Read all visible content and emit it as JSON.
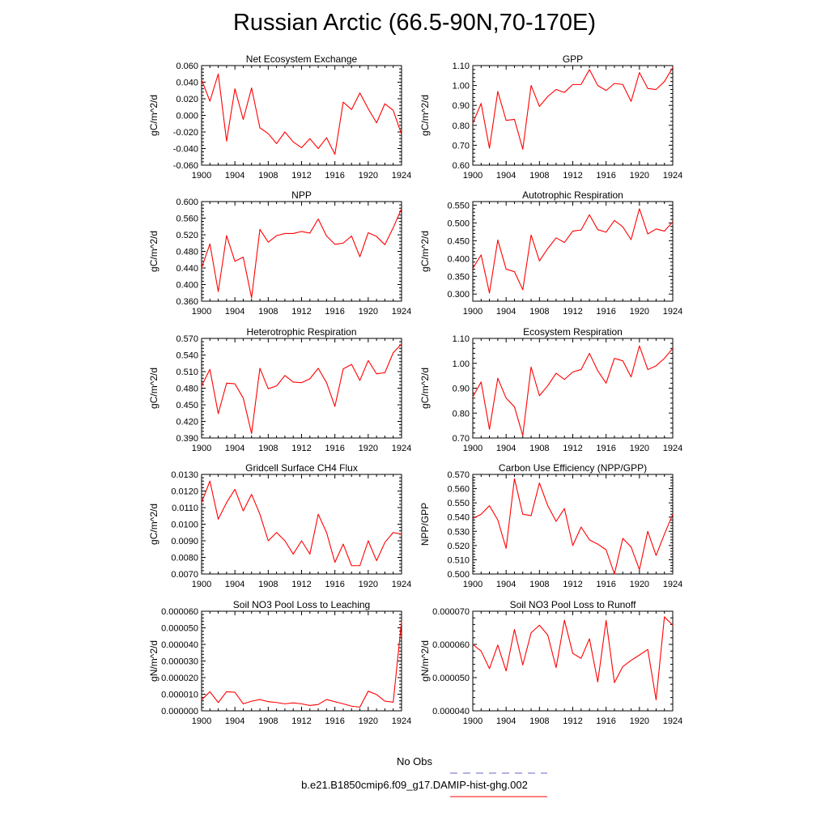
{
  "page": {
    "title": "Russian Arctic (66.5-90N,70-170E)"
  },
  "legend": {
    "obs_label": "No Obs",
    "obs_color": "#6666cc",
    "case_label": "b.e21.B1850cmip6.f09_g17.DAMIP-hist-ghg.002",
    "case_color": "#ff0000"
  },
  "chart_data": [
    {
      "type": "line",
      "title": "Net Ecosystem Exchange",
      "ylabel": "gC/m^2/d",
      "xlim": [
        1900,
        1924
      ],
      "xticks": [
        "1900",
        "1904",
        "1908",
        "1912",
        "1916",
        "1920",
        "1924"
      ],
      "ylim": [
        -0.06,
        0.06
      ],
      "yticks": [
        "0.060",
        "0.040",
        "0.020",
        "0.000",
        "-0.020",
        "-0.040",
        "-0.060"
      ],
      "series": [
        {
          "color": "#ff0000",
          "x": [
            1900,
            1901,
            1902,
            1903,
            1904,
            1905,
            1906,
            1907,
            1908,
            1909,
            1910,
            1911,
            1912,
            1913,
            1914,
            1915,
            1916,
            1917,
            1918,
            1919,
            1920,
            1921,
            1922,
            1923,
            1924
          ],
          "values": [
            0.043,
            0.017,
            0.05,
            -0.031,
            0.032,
            -0.005,
            0.033,
            -0.015,
            -0.022,
            -0.034,
            -0.02,
            -0.032,
            -0.039,
            -0.028,
            -0.04,
            -0.027,
            -0.047,
            0.016,
            0.007,
            0.027,
            0.008,
            -0.009,
            0.014,
            0.006,
            -0.023
          ]
        }
      ]
    },
    {
      "type": "line",
      "title": "GPP",
      "ylabel": "gC/m^2/d",
      "xlim": [
        1900,
        1924
      ],
      "xticks": [
        "1900",
        "1904",
        "1908",
        "1912",
        "1916",
        "1920",
        "1924"
      ],
      "ylim": [
        0.6,
        1.1
      ],
      "yticks": [
        "1.10",
        "1.00",
        "0.90",
        "0.80",
        "0.70",
        "0.60"
      ],
      "series": [
        {
          "color": "#ff0000",
          "x": [
            1900,
            1901,
            1902,
            1903,
            1904,
            1905,
            1906,
            1907,
            1908,
            1909,
            1910,
            1911,
            1912,
            1913,
            1914,
            1915,
            1916,
            1917,
            1918,
            1919,
            1920,
            1921,
            1922,
            1923,
            1924
          ],
          "values": [
            0.81,
            0.91,
            0.685,
            0.97,
            0.825,
            0.83,
            0.68,
            1.0,
            0.895,
            0.945,
            0.98,
            0.965,
            1.005,
            1.005,
            1.08,
            1.0,
            0.975,
            1.01,
            1.005,
            0.92,
            1.065,
            0.985,
            0.98,
            1.02,
            1.09
          ]
        }
      ]
    },
    {
      "type": "line",
      "title": "NPP",
      "ylabel": "gC/m^2/d",
      "xlim": [
        1900,
        1924
      ],
      "xticks": [
        "1900",
        "1904",
        "1908",
        "1912",
        "1916",
        "1920",
        "1924"
      ],
      "ylim": [
        0.36,
        0.6
      ],
      "yticks": [
        "0.600",
        "0.560",
        "0.520",
        "0.480",
        "0.440",
        "0.400",
        "0.360"
      ],
      "series": [
        {
          "color": "#ff0000",
          "x": [
            1900,
            1901,
            1902,
            1903,
            1904,
            1905,
            1906,
            1907,
            1908,
            1909,
            1910,
            1911,
            1912,
            1913,
            1914,
            1915,
            1916,
            1917,
            1918,
            1919,
            1920,
            1921,
            1922,
            1923,
            1924
          ],
          "values": [
            0.44,
            0.498,
            0.383,
            0.518,
            0.456,
            0.466,
            0.368,
            0.533,
            0.502,
            0.518,
            0.523,
            0.523,
            0.528,
            0.524,
            0.558,
            0.517,
            0.497,
            0.5,
            0.517,
            0.467,
            0.525,
            0.516,
            0.496,
            0.537,
            0.583
          ]
        }
      ]
    },
    {
      "type": "line",
      "title": "Autotrophic Respiration",
      "ylabel": "gC/m^2/d",
      "xlim": [
        1900,
        1924
      ],
      "xticks": [
        "1900",
        "1904",
        "1908",
        "1912",
        "1916",
        "1920",
        "1924"
      ],
      "ylim": [
        0.28,
        0.56
      ],
      "yticks": [
        "0.550",
        "0.500",
        "0.450",
        "0.400",
        "0.350",
        "0.300"
      ],
      "series": [
        {
          "color": "#ff0000",
          "x": [
            1900,
            1901,
            1902,
            1903,
            1904,
            1905,
            1906,
            1907,
            1908,
            1909,
            1910,
            1911,
            1912,
            1913,
            1914,
            1915,
            1916,
            1917,
            1918,
            1919,
            1920,
            1921,
            1922,
            1923,
            1924
          ],
          "values": [
            0.372,
            0.41,
            0.303,
            0.452,
            0.37,
            0.363,
            0.312,
            0.466,
            0.393,
            0.428,
            0.458,
            0.445,
            0.477,
            0.48,
            0.523,
            0.481,
            0.474,
            0.507,
            0.489,
            0.453,
            0.54,
            0.469,
            0.483,
            0.477,
            0.503
          ]
        }
      ]
    },
    {
      "type": "line",
      "title": "Heterotrophic Respiration",
      "ylabel": "gC/m^2/d",
      "xlim": [
        1900,
        1924
      ],
      "xticks": [
        "1900",
        "1904",
        "1908",
        "1912",
        "1916",
        "1920",
        "1924"
      ],
      "ylim": [
        0.39,
        0.57
      ],
      "yticks": [
        "0.570",
        "0.540",
        "0.510",
        "0.480",
        "0.450",
        "0.420",
        "0.390"
      ],
      "series": [
        {
          "color": "#ff0000",
          "x": [
            1900,
            1901,
            1902,
            1903,
            1904,
            1905,
            1906,
            1907,
            1908,
            1909,
            1910,
            1911,
            1912,
            1913,
            1914,
            1915,
            1916,
            1917,
            1918,
            1919,
            1920,
            1921,
            1922,
            1923,
            1924
          ],
          "values": [
            0.484,
            0.514,
            0.434,
            0.489,
            0.488,
            0.462,
            0.398,
            0.516,
            0.479,
            0.484,
            0.503,
            0.491,
            0.49,
            0.497,
            0.516,
            0.49,
            0.447,
            0.515,
            0.523,
            0.494,
            0.53,
            0.506,
            0.508,
            0.544,
            0.56
          ]
        }
      ]
    },
    {
      "type": "line",
      "title": "Ecosystem Respiration",
      "ylabel": "gC/m^2/d",
      "xlim": [
        1900,
        1924
      ],
      "xticks": [
        "1900",
        "1904",
        "1908",
        "1912",
        "1916",
        "1920",
        "1924"
      ],
      "ylim": [
        0.7,
        1.1
      ],
      "yticks": [
        "1.10",
        "1.00",
        "0.90",
        "0.80",
        "0.70"
      ],
      "series": [
        {
          "color": "#ff0000",
          "x": [
            1900,
            1901,
            1902,
            1903,
            1904,
            1905,
            1906,
            1907,
            1908,
            1909,
            1910,
            1911,
            1912,
            1913,
            1914,
            1915,
            1916,
            1917,
            1918,
            1919,
            1920,
            1921,
            1922,
            1923,
            1924
          ],
          "values": [
            0.865,
            0.925,
            0.735,
            0.94,
            0.86,
            0.825,
            0.71,
            0.985,
            0.87,
            0.91,
            0.96,
            0.935,
            0.965,
            0.975,
            1.04,
            0.97,
            0.92,
            1.02,
            1.01,
            0.945,
            1.07,
            0.975,
            0.99,
            1.02,
            1.06
          ]
        }
      ]
    },
    {
      "type": "line",
      "title": "Gridcell Surface CH4 Flux",
      "ylabel": "gC/m^2/d",
      "xlim": [
        1900,
        1924
      ],
      "xticks": [
        "1900",
        "1904",
        "1908",
        "1912",
        "1916",
        "1920",
        "1924"
      ],
      "ylim": [
        0.007,
        0.013
      ],
      "yticks": [
        "0.0130",
        "0.0120",
        "0.0110",
        "0.0100",
        "0.0090",
        "0.0080",
        "0.0070"
      ],
      "series": [
        {
          "color": "#ff0000",
          "x": [
            1900,
            1901,
            1902,
            1903,
            1904,
            1905,
            1906,
            1907,
            1908,
            1909,
            1910,
            1911,
            1912,
            1913,
            1914,
            1915,
            1916,
            1917,
            1918,
            1919,
            1920,
            1921,
            1922,
            1923,
            1924
          ],
          "values": [
            0.0113,
            0.0126,
            0.0103,
            0.0113,
            0.0121,
            0.0108,
            0.0118,
            0.0106,
            0.009,
            0.0095,
            0.009,
            0.0082,
            0.009,
            0.0082,
            0.0106,
            0.0095,
            0.0077,
            0.0088,
            0.0075,
            0.0075,
            0.009,
            0.0078,
            0.0089,
            0.0095,
            0.0094
          ]
        }
      ]
    },
    {
      "type": "line",
      "title": "Carbon Use Efficiency (NPP/GPP)",
      "ylabel": "NPP/GPP",
      "xlim": [
        1900,
        1924
      ],
      "xticks": [
        "1900",
        "1904",
        "1908",
        "1912",
        "1916",
        "1920",
        "1924"
      ],
      "ylim": [
        0.5,
        0.57
      ],
      "yticks": [
        "0.570",
        "0.560",
        "0.550",
        "0.540",
        "0.530",
        "0.520",
        "0.510",
        "0.500"
      ],
      "series": [
        {
          "color": "#ff0000",
          "x": [
            1900,
            1901,
            1902,
            1903,
            1904,
            1905,
            1906,
            1907,
            1908,
            1909,
            1910,
            1911,
            1912,
            1913,
            1914,
            1915,
            1916,
            1917,
            1918,
            1919,
            1920,
            1921,
            1922,
            1923,
            1924
          ],
          "values": [
            0.539,
            0.542,
            0.548,
            0.538,
            0.518,
            0.567,
            0.542,
            0.541,
            0.564,
            0.548,
            0.537,
            0.546,
            0.52,
            0.533,
            0.524,
            0.521,
            0.517,
            0.5,
            0.525,
            0.519,
            0.503,
            0.53,
            0.513,
            0.528,
            0.542
          ]
        }
      ]
    },
    {
      "type": "line",
      "title": "Soil NO3 Pool Loss to Leaching",
      "ylabel": "gN/m^2/d",
      "xlim": [
        1900,
        1924
      ],
      "xticks": [
        "1900",
        "1904",
        "1908",
        "1912",
        "1916",
        "1920",
        "1924"
      ],
      "ylim": [
        0.0,
        6e-05
      ],
      "yticks": [
        "0.000060",
        "0.000050",
        "0.000040",
        "0.000030",
        "0.000020",
        "0.000010",
        "0.000000"
      ],
      "series": [
        {
          "color": "#ff0000",
          "x": [
            1900,
            1901,
            1902,
            1903,
            1904,
            1905,
            1906,
            1907,
            1908,
            1909,
            1910,
            1911,
            1912,
            1913,
            1914,
            1915,
            1916,
            1917,
            1918,
            1919,
            1920,
            1921,
            1922,
            1923,
            1924
          ],
          "values": [
            6.5e-06,
            1.15e-05,
            5e-06,
            1.15e-05,
            1.12e-05,
            4.2e-06,
            5.8e-06,
            6.8e-06,
            5.5e-06,
            5e-06,
            4.2e-06,
            4.8e-06,
            4.2e-06,
            3.2e-06,
            3.8e-06,
            6.8e-06,
            5.5e-06,
            4.2e-06,
            2.8e-06,
            2.2e-06,
            1.18e-05,
            9.8e-06,
            5.8e-06,
            5.2e-06,
            5.4e-05
          ]
        }
      ]
    },
    {
      "type": "line",
      "title": "Soil NO3 Pool Loss to Runoff",
      "ylabel": "gN/m^2/d",
      "xlim": [
        1900,
        1924
      ],
      "xticks": [
        "1900",
        "1904",
        "1908",
        "1912",
        "1916",
        "1920",
        "1924"
      ],
      "ylim": [
        4e-05,
        7e-05
      ],
      "yticks": [
        "0.000070",
        "0.000060",
        "0.000050",
        "0.000040"
      ],
      "series": [
        {
          "color": "#ff0000",
          "x": [
            1900,
            1901,
            1902,
            1903,
            1904,
            1905,
            1906,
            1907,
            1908,
            1909,
            1910,
            1911,
            1912,
            1913,
            1914,
            1915,
            1916,
            1917,
            1918,
            1919,
            1920,
            1921,
            1922,
            1923,
            1924
          ],
          "values": [
            6e-05,
            5.8e-05,
            5.27e-05,
            5.98e-05,
            5.2e-05,
            6.45e-05,
            5.38e-05,
            6.35e-05,
            6.58e-05,
            6.28e-05,
            5.3e-05,
            6.73e-05,
            5.73e-05,
            5.58e-05,
            6.17e-05,
            4.87e-05,
            6.72e-05,
            4.85e-05,
            5.33e-05,
            5.52e-05,
            5.68e-05,
            5.85e-05,
            4.33e-05,
            6.83e-05,
            6.58e-05
          ]
        }
      ]
    }
  ]
}
